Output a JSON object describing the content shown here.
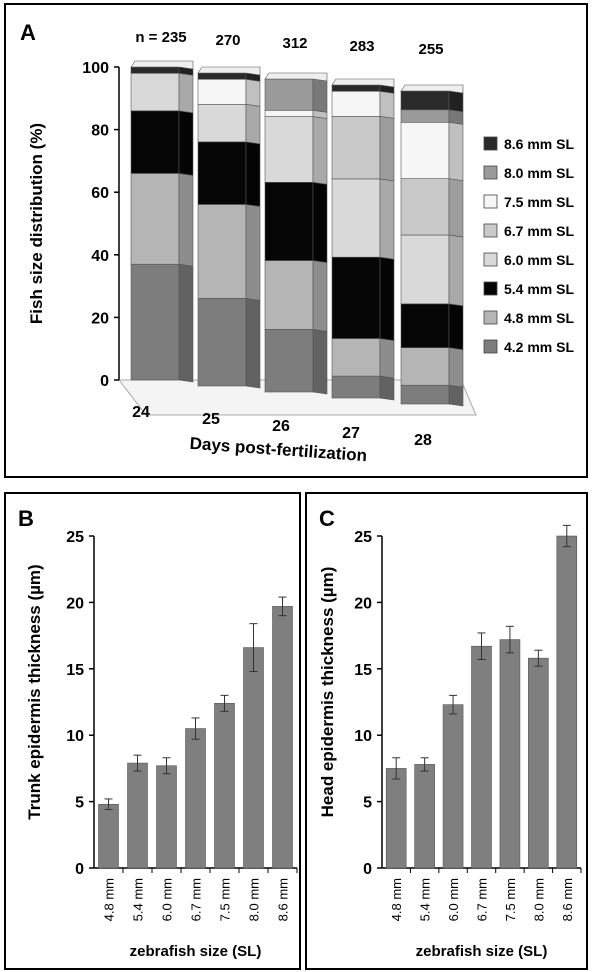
{
  "chart_data": [
    {
      "panel_letter": "A",
      "type": "bar",
      "stacked": true,
      "style": "3d",
      "xlabel": "Days post-fertilization",
      "ylabel": "Fish size distribution (%)",
      "ylim": [
        0,
        100
      ],
      "yticks": [
        "0",
        "20",
        "40",
        "60",
        "80",
        "100"
      ],
      "categories": [
        "24",
        "25",
        "26",
        "27",
        "28"
      ],
      "bar_annotations": [
        "n = 235",
        "270",
        "312",
        "283",
        "255"
      ],
      "legend_position": "right",
      "legend_order": [
        "8.6 mm SL",
        "8.0 mm SL",
        "7.5 mm SL",
        "6.7 mm SL",
        "6.0 mm SL",
        "5.4 mm SL",
        "4.8 mm SL",
        "4.2 mm SL"
      ],
      "series": [
        {
          "name": "4.2 mm SL",
          "color": "#7d7d7d",
          "values": [
            37,
            28,
            20,
            7,
            6
          ]
        },
        {
          "name": "4.8 mm SL",
          "color": "#b5b5b5",
          "values": [
            29,
            30,
            22,
            12,
            12
          ]
        },
        {
          "name": "5.4 mm SL",
          "color": "#050505",
          "values": [
            20,
            20,
            25,
            26,
            14
          ]
        },
        {
          "name": "6.0 mm SL",
          "color": "#d9d9d9",
          "values": [
            12,
            12,
            21,
            25,
            22
          ]
        },
        {
          "name": "6.7 mm SL",
          "color": "#c9c9c9",
          "values": [
            0,
            0,
            0,
            20,
            18
          ]
        },
        {
          "name": "7.5 mm SL",
          "color": "#f6f6f6",
          "values": [
            0,
            8,
            2,
            8,
            18
          ]
        },
        {
          "name": "8.0 mm SL",
          "color": "#9a9a9a",
          "values": [
            0,
            0,
            10,
            0,
            4
          ]
        },
        {
          "name": "8.6 mm SL",
          "color": "#2a2a2a",
          "values": [
            2,
            2,
            0,
            2,
            6
          ]
        }
      ]
    },
    {
      "panel_letter": "B",
      "type": "bar",
      "xlabel": "zebrafish size (SL)",
      "ylabel": "Trunk epidermis thickness  (µm)",
      "ylim": [
        0,
        25
      ],
      "yticks": [
        "0",
        "5",
        "10",
        "15",
        "20",
        "25"
      ],
      "categories": [
        "4.8 mm",
        "5.4 mm",
        "6.0 mm",
        "6.7 mm",
        "7.5 mm",
        "8.0 mm",
        "8.6 mm"
      ],
      "values": [
        4.8,
        7.9,
        7.7,
        10.5,
        12.4,
        16.6,
        19.7
      ],
      "errors": [
        0.4,
        0.6,
        0.6,
        0.8,
        0.6,
        1.8,
        0.7
      ],
      "color": "#7f7f7f"
    },
    {
      "panel_letter": "C",
      "type": "bar",
      "xlabel": "zebrafish size (SL)",
      "ylabel": "Head epidermis thickness  (µm)",
      "ylim": [
        0,
        25
      ],
      "yticks": [
        "0",
        "5",
        "10",
        "15",
        "20",
        "25"
      ],
      "categories": [
        "4.8 mm",
        "5.4 mm",
        "6.0 mm",
        "6.7 mm",
        "7.5 mm",
        "8.0 mm",
        "8.6 mm"
      ],
      "values": [
        7.5,
        7.8,
        12.3,
        16.7,
        17.2,
        15.8,
        25.0
      ],
      "errors": [
        0.8,
        0.5,
        0.7,
        1.0,
        1.0,
        0.6,
        0.8
      ],
      "color": "#7f7f7f"
    }
  ]
}
